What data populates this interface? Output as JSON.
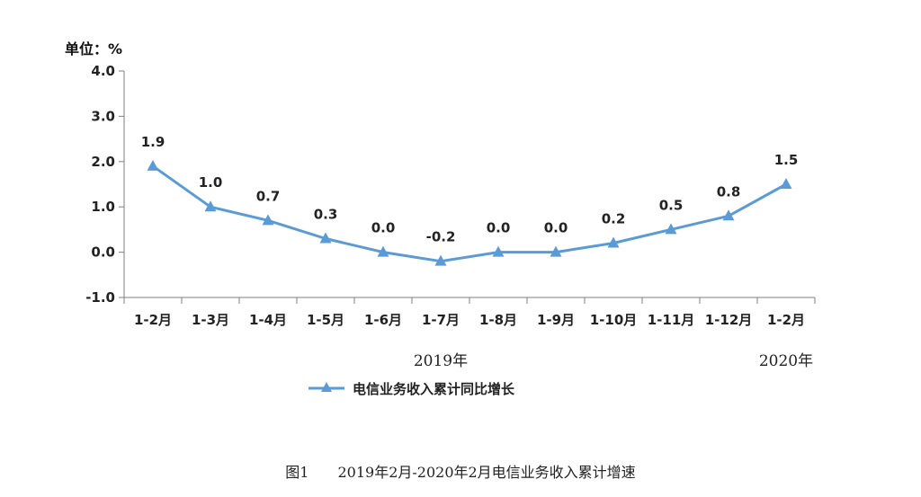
{
  "chart_data": {
    "type": "line",
    "unit_label": "单位：%",
    "categories": [
      "1-2月",
      "1-3月",
      "1-4月",
      "1-5月",
      "1-6月",
      "1-7月",
      "1-8月",
      "1-9月",
      "1-10月",
      "1-11月",
      "1-12月",
      "1-2月"
    ],
    "series": [
      {
        "name": "电信业务收入累计同比增长",
        "values": [
          1.9,
          1.0,
          0.7,
          0.3,
          0.0,
          -0.2,
          0.0,
          0.0,
          0.2,
          0.5,
          0.8,
          1.5
        ],
        "value_labels": [
          "1.9",
          "1.0",
          "0.7",
          "0.3",
          "0.0",
          "-0.2",
          "0.0",
          "0.0",
          "0.2",
          "0.5",
          "0.8",
          "1.5"
        ],
        "color": "#5b9bd5",
        "marker": "triangle"
      }
    ],
    "ylim": [
      -1.0,
      4.0
    ],
    "yticks": [
      -1.0,
      0.0,
      1.0,
      2.0,
      3.0,
      4.0
    ],
    "ytick_labels": [
      "-1.0",
      "0.0",
      "1.0",
      "2.0",
      "3.0",
      "4.0"
    ],
    "year_groups": [
      {
        "label": "2019年",
        "from": 0,
        "to": 10
      },
      {
        "label": "2020年",
        "from": 11,
        "to": 11
      }
    ],
    "grid": false,
    "legend_position": "bottom"
  },
  "caption": "图1　　2019年2月-2020年2月电信业务收入累计增速"
}
